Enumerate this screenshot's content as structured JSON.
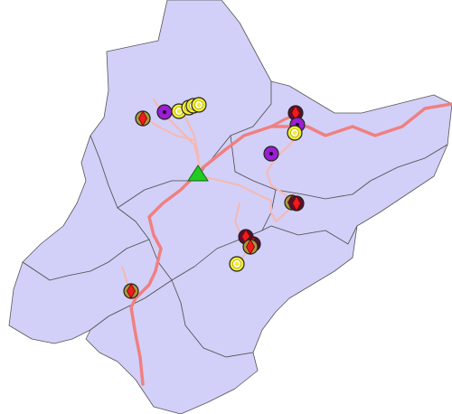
{
  "colors": {
    "background": "#ffffff",
    "region_fill": "#d2d0f8",
    "region_border": "#555555",
    "highway": "#f08080",
    "local_road": "#f6b8b0",
    "triangle": "#22cc22",
    "ring_olive": "#a89a3a",
    "ring_yellow": "#f5ee2a",
    "ring_purple": "#9a1fd0",
    "inner_red": "#ee1c1c",
    "inner_purple": "#9a1fd0",
    "inner_yellow": "#f5ee2a",
    "inner_white": "#ffffff"
  },
  "legend_symbols": {
    "triangle": "green-triangle-marker",
    "olive_red": "olive-ring-red-diamond",
    "yellow": "yellow-ring-marker",
    "purple": "purple-ring-dot",
    "dark_red": "dark-ring-red-diamond"
  }
}
